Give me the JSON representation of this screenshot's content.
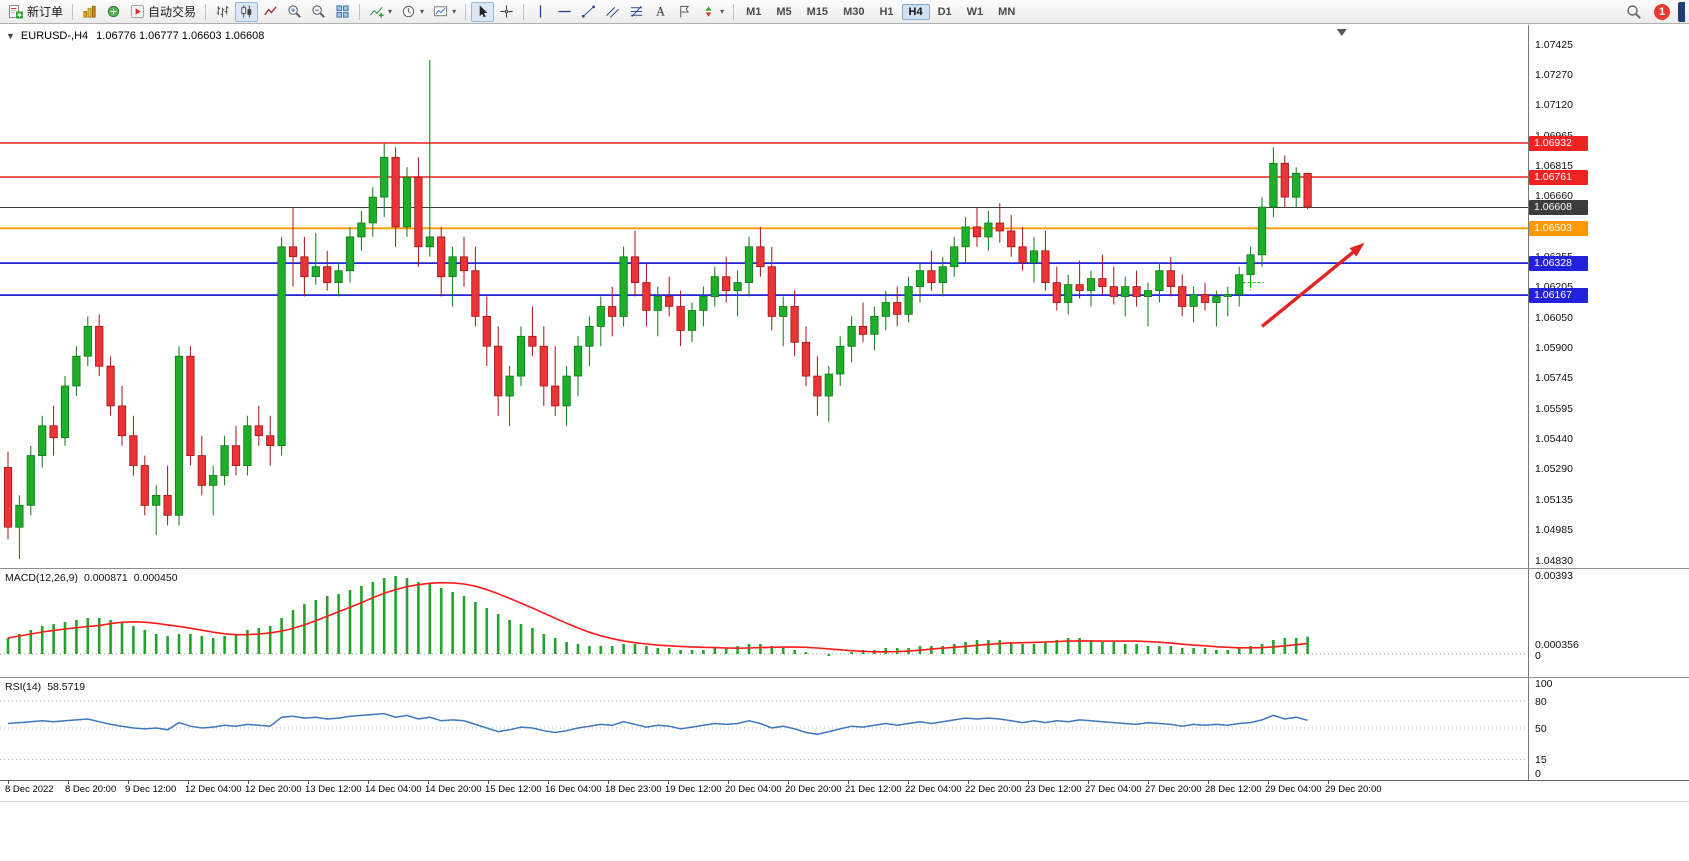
{
  "toolbar": {
    "new_order_label": "新订单",
    "auto_trading_label": "自动交易",
    "timeframes": [
      "M1",
      "M5",
      "M15",
      "M30",
      "H1",
      "H4",
      "D1",
      "W1",
      "MN"
    ],
    "active_timeframe": "H4",
    "notification_count": "1"
  },
  "chart_data": [
    {
      "type": "candlestick",
      "title_symbol": "EURUSD-,H4",
      "title_ohlc": "1.06776 1.06777 1.06603 1.06608",
      "open": 1.06776,
      "high": 1.06777,
      "low": 1.06603,
      "close": 1.06608,
      "y_max": 1.07425,
      "y_min": 1.0483,
      "y_ticks": [
        "1.07425",
        "1.07270",
        "1.07120",
        "1.06965",
        "1.06815",
        "1.06660",
        "1.06505",
        "1.06355",
        "1.06205",
        "1.06050",
        "1.05900",
        "1.05745",
        "1.05595",
        "1.05440",
        "1.05290",
        "1.05135",
        "1.04985",
        "1.04830"
      ],
      "x_labels": [
        "8 Dec 2022",
        "8 Dec 20:00",
        "9 Dec 12:00",
        "12 Dec 04:00",
        "12 Dec 20:00",
        "13 Dec 12:00",
        "14 Dec 04:00",
        "14 Dec 20:00",
        "15 Dec 12:00",
        "16 Dec 04:00",
        "18 Dec 23:00",
        "19 Dec 12:00",
        "20 Dec 04:00",
        "20 Dec 20:00",
        "21 Dec 12:00",
        "22 Dec 04:00",
        "22 Dec 20:00",
        "23 Dec 12:00",
        "27 Dec 04:00",
        "27 Dec 20:00",
        "28 Dec 12:00",
        "29 Dec 04:00",
        "29 Dec 20:00"
      ],
      "up_color": "#1fae2a",
      "up_stroke": "#0c7a12",
      "down_color": "#e93537",
      "down_stroke": "#a31313",
      "hlines": [
        {
          "price": 1.06932,
          "label": "1.06932",
          "color": "#f02222",
          "width": 1.6
        },
        {
          "price": 1.06761,
          "label": "1.06761",
          "color": "#f02222",
          "width": 1.6
        },
        {
          "price": 1.06608,
          "label": "1.06608",
          "color": "#3c3c3c",
          "width": 1.1,
          "role": "bid-price"
        },
        {
          "price": 1.06503,
          "label": "1.06503",
          "color": "#ff9800",
          "width": 1.8
        },
        {
          "price": 1.06328,
          "label": "1.06328",
          "color": "#2222dd",
          "width": 1.8
        },
        {
          "price": 1.06167,
          "label": "1.06167",
          "color": "#2222dd",
          "width": 1.8
        }
      ],
      "arrow": {
        "from_bar": 110,
        "from_price": 1.0601,
        "to_bar": 119,
        "to_price": 1.0643,
        "color": "#e02424"
      },
      "order_marker": {
        "bar": 109,
        "price": 1.0623,
        "color": "#00b300"
      },
      "shift_marker_bar": 117,
      "candles": [
        [
          1.053,
          1.0538,
          1.0494,
          1.05
        ],
        [
          1.05,
          1.0516,
          1.0484,
          1.0511
        ],
        [
          1.0511,
          1.0541,
          1.0506,
          1.0536
        ],
        [
          1.0536,
          1.0556,
          1.053,
          1.0551
        ],
        [
          1.0551,
          1.0561,
          1.0536,
          1.0545
        ],
        [
          1.0545,
          1.0576,
          1.0541,
          1.0571
        ],
        [
          1.0571,
          1.0591,
          1.0566,
          1.0586
        ],
        [
          1.0586,
          1.0606,
          1.0581,
          1.0601
        ],
        [
          1.0601,
          1.0607,
          1.0576,
          1.0581
        ],
        [
          1.0581,
          1.0586,
          1.0556,
          1.0561
        ],
        [
          1.0561,
          1.0571,
          1.0541,
          1.0546
        ],
        [
          1.0546,
          1.0556,
          1.0526,
          1.0531
        ],
        [
          1.0531,
          1.0536,
          1.0506,
          1.0511
        ],
        [
          1.0511,
          1.0521,
          1.0496,
          1.0516
        ],
        [
          1.0516,
          1.0531,
          1.0501,
          1.0506
        ],
        [
          1.0506,
          1.0591,
          1.0501,
          1.0586
        ],
        [
          1.0586,
          1.0591,
          1.0531,
          1.0536
        ],
        [
          1.0536,
          1.0546,
          1.0516,
          1.0521
        ],
        [
          1.0521,
          1.0531,
          1.0506,
          1.0526
        ],
        [
          1.0526,
          1.0546,
          1.0521,
          1.0541
        ],
        [
          1.0541,
          1.0551,
          1.0526,
          1.0531
        ],
        [
          1.0531,
          1.0556,
          1.0526,
          1.0551
        ],
        [
          1.0551,
          1.0561,
          1.0541,
          1.0546
        ],
        [
          1.0546,
          1.0556,
          1.0531,
          1.0541
        ],
        [
          1.0541,
          1.0646,
          1.0536,
          1.0641
        ],
        [
          1.0641,
          1.0661,
          1.0621,
          1.0636
        ],
        [
          1.0636,
          1.0646,
          1.0616,
          1.0626
        ],
        [
          1.0626,
          1.0648,
          1.0622,
          1.0631
        ],
        [
          1.0631,
          1.0639,
          1.0619,
          1.0623
        ],
        [
          1.0623,
          1.0633,
          1.0616,
          1.0629
        ],
        [
          1.0629,
          1.0651,
          1.0623,
          1.0646
        ],
        [
          1.0646,
          1.0659,
          1.0639,
          1.0653
        ],
        [
          1.0653,
          1.0671,
          1.0646,
          1.0666
        ],
        [
          1.0666,
          1.0693,
          1.0656,
          1.0686
        ],
        [
          1.0686,
          1.0691,
          1.0641,
          1.0651
        ],
        [
          1.0651,
          1.0681,
          1.0646,
          1.0676
        ],
        [
          1.0676,
          1.0686,
          1.0631,
          1.0641
        ],
        [
          1.0641,
          1.0735,
          1.0636,
          1.0646
        ],
        [
          1.0646,
          1.0651,
          1.0616,
          1.0626
        ],
        [
          1.0626,
          1.0641,
          1.0611,
          1.0636
        ],
        [
          1.0636,
          1.0646,
          1.0621,
          1.0629
        ],
        [
          1.0629,
          1.0641,
          1.0601,
          1.0606
        ],
        [
          1.0606,
          1.0616,
          1.0581,
          1.0591
        ],
        [
          1.0591,
          1.0601,
          1.0556,
          1.0566
        ],
        [
          1.0566,
          1.0581,
          1.0551,
          1.0576
        ],
        [
          1.0576,
          1.0601,
          1.0571,
          1.0596
        ],
        [
          1.0596,
          1.0611,
          1.0586,
          1.0591
        ],
        [
          1.0591,
          1.0601,
          1.0561,
          1.0571
        ],
        [
          1.0571,
          1.0591,
          1.0556,
          1.0561
        ],
        [
          1.0561,
          1.0581,
          1.0551,
          1.0576
        ],
        [
          1.0576,
          1.0596,
          1.0566,
          1.0591
        ],
        [
          1.0591,
          1.0606,
          1.0581,
          1.0601
        ],
        [
          1.0601,
          1.0616,
          1.0591,
          1.0611
        ],
        [
          1.0611,
          1.0621,
          1.0596,
          1.0606
        ],
        [
          1.0606,
          1.0641,
          1.0601,
          1.0636
        ],
        [
          1.0636,
          1.0649,
          1.0616,
          1.0623
        ],
        [
          1.0623,
          1.0633,
          1.0601,
          1.0609
        ],
        [
          1.0609,
          1.0621,
          1.0596,
          1.0616
        ],
        [
          1.0616,
          1.0626,
          1.0606,
          1.0611
        ],
        [
          1.0611,
          1.0619,
          1.0591,
          1.0599
        ],
        [
          1.0599,
          1.0613,
          1.0593,
          1.0609
        ],
        [
          1.0609,
          1.0621,
          1.0601,
          1.0616
        ],
        [
          1.0616,
          1.0631,
          1.0611,
          1.0626
        ],
        [
          1.0626,
          1.0636,
          1.0613,
          1.0619
        ],
        [
          1.0619,
          1.0629,
          1.0606,
          1.0623
        ],
        [
          1.0623,
          1.0646,
          1.0616,
          1.0641
        ],
        [
          1.0641,
          1.0651,
          1.0626,
          1.0631
        ],
        [
          1.0631,
          1.0641,
          1.0599,
          1.0606
        ],
        [
          1.0606,
          1.0616,
          1.0591,
          1.0611
        ],
        [
          1.0611,
          1.0619,
          1.0586,
          1.0593
        ],
        [
          1.0593,
          1.0601,
          1.0571,
          1.0576
        ],
        [
          1.0576,
          1.0586,
          1.0556,
          1.0566
        ],
        [
          1.0566,
          1.0581,
          1.0553,
          1.0577
        ],
        [
          1.0577,
          1.0596,
          1.0571,
          1.0591
        ],
        [
          1.0591,
          1.0606,
          1.0583,
          1.0601
        ],
        [
          1.0601,
          1.0613,
          1.0593,
          1.0597
        ],
        [
          1.0597,
          1.0611,
          1.0589,
          1.0606
        ],
        [
          1.0606,
          1.0619,
          1.0599,
          1.0613
        ],
        [
          1.0613,
          1.0621,
          1.0601,
          1.0607
        ],
        [
          1.0607,
          1.0626,
          1.0603,
          1.0621
        ],
        [
          1.0621,
          1.0633,
          1.0613,
          1.0629
        ],
        [
          1.0629,
          1.0639,
          1.0619,
          1.0623
        ],
        [
          1.0623,
          1.0636,
          1.0616,
          1.0631
        ],
        [
          1.0631,
          1.0646,
          1.0626,
          1.0641
        ],
        [
          1.0641,
          1.0656,
          1.0633,
          1.0651
        ],
        [
          1.0651,
          1.0661,
          1.0641,
          1.0646
        ],
        [
          1.0646,
          1.0659,
          1.0639,
          1.0653
        ],
        [
          1.0653,
          1.0663,
          1.0643,
          1.0649
        ],
        [
          1.0649,
          1.0657,
          1.0636,
          1.0641
        ],
        [
          1.0641,
          1.0651,
          1.0629,
          1.0633
        ],
        [
          1.0633,
          1.0646,
          1.0623,
          1.0639
        ],
        [
          1.0639,
          1.0649,
          1.0619,
          1.0623
        ],
        [
          1.0623,
          1.0631,
          1.0609,
          1.0613
        ],
        [
          1.0613,
          1.0627,
          1.0607,
          1.0622
        ],
        [
          1.0622,
          1.0634,
          1.0615,
          1.0619
        ],
        [
          1.0619,
          1.0629,
          1.0611,
          1.0625
        ],
        [
          1.0625,
          1.0637,
          1.0617,
          1.0621
        ],
        [
          1.0621,
          1.0631,
          1.0612,
          1.0616
        ],
        [
          1.0616,
          1.0626,
          1.0606,
          1.0621
        ],
        [
          1.0621,
          1.0629,
          1.0611,
          1.0616
        ],
        [
          1.0616,
          1.0623,
          1.0601,
          1.0619
        ],
        [
          1.0619,
          1.0633,
          1.0613,
          1.0629
        ],
        [
          1.0629,
          1.0636,
          1.0616,
          1.0621
        ],
        [
          1.0621,
          1.0627,
          1.0606,
          1.0611
        ],
        [
          1.0611,
          1.0621,
          1.0603,
          1.0617
        ],
        [
          1.0617,
          1.0623,
          1.0609,
          1.0613
        ],
        [
          1.0613,
          1.0619,
          1.0601,
          1.0616
        ],
        [
          1.0616,
          1.0621,
          1.0606,
          1.0617
        ],
        [
          1.0617,
          1.0631,
          1.0611,
          1.0627
        ],
        [
          1.0627,
          1.0641,
          1.0621,
          1.0637
        ],
        [
          1.0637,
          1.0666,
          1.0631,
          1.0661
        ],
        [
          1.0661,
          1.0691,
          1.0656,
          1.0683
        ],
        [
          1.0683,
          1.0687,
          1.0661,
          1.0666
        ],
        [
          1.0666,
          1.0681,
          1.0661,
          1.0678
        ],
        [
          1.0678,
          1.0678,
          1.066,
          1.0661
        ]
      ]
    },
    {
      "type": "bar",
      "name": "MACD",
      "label": "MACD(12,26,9)",
      "value_main": "0.000871",
      "value_signal": "0.000450",
      "signal_period": 9,
      "scale_labels": [
        "0.00393",
        "0.000356",
        "0"
      ],
      "bar_color": "#22a42a",
      "signal_color": "#ff1a1a",
      "y_max": 0.00393,
      "values": [
        0.0008,
        0.001,
        0.0012,
        0.0014,
        0.0015,
        0.0016,
        0.0017,
        0.0018,
        0.0018,
        0.0017,
        0.0016,
        0.0014,
        0.0012,
        0.001,
        0.0009,
        0.001,
        0.001,
        0.0009,
        0.0008,
        0.0009,
        0.001,
        0.0012,
        0.0013,
        0.0014,
        0.0018,
        0.0022,
        0.0025,
        0.0027,
        0.0029,
        0.003,
        0.0032,
        0.0034,
        0.0036,
        0.0038,
        0.0039,
        0.0038,
        0.0036,
        0.0035,
        0.0033,
        0.0031,
        0.0029,
        0.0026,
        0.0023,
        0.002,
        0.0017,
        0.0015,
        0.0013,
        0.001,
        0.0008,
        0.0006,
        0.0005,
        0.0004,
        0.0004,
        0.0004,
        0.0005,
        0.0005,
        0.0004,
        0.0003,
        0.0003,
        0.0002,
        0.0002,
        0.0002,
        0.0003,
        0.0003,
        0.0004,
        0.0005,
        0.0005,
        0.0004,
        0.0003,
        0.0002,
        0.0001,
        0.0,
        -0.0001,
        0.0,
        0.0001,
        0.0002,
        0.0002,
        0.0003,
        0.0003,
        0.0003,
        0.0004,
        0.0004,
        0.0004,
        0.0005,
        0.0006,
        0.0007,
        0.0007,
        0.0007,
        0.0006,
        0.0005,
        0.0005,
        0.0006,
        0.0007,
        0.0008,
        0.0008,
        0.0007,
        0.0006,
        0.0006,
        0.0005,
        0.0005,
        0.0004,
        0.0004,
        0.0004,
        0.0003,
        0.0003,
        0.0003,
        0.0002,
        0.0002,
        0.0003,
        0.0004,
        0.0005,
        0.0007,
        0.0008,
        0.0008,
        0.00087
      ]
    },
    {
      "type": "line",
      "name": "RSI",
      "label": "RSI(14)",
      "value": "58.5719",
      "line_color": "#3f77c0",
      "levels": [
        100,
        80,
        50,
        15,
        0
      ],
      "y_max": 100,
      "y_min": 0,
      "values": [
        55,
        56,
        57,
        58,
        57,
        58,
        59,
        60,
        57,
        54,
        52,
        50,
        49,
        50,
        48,
        56,
        52,
        50,
        51,
        53,
        52,
        54,
        53,
        52,
        62,
        63,
        61,
        62,
        60,
        61,
        63,
        64,
        65,
        66,
        62,
        64,
        60,
        62,
        58,
        59,
        58,
        54,
        50,
        46,
        48,
        51,
        50,
        47,
        45,
        47,
        50,
        52,
        54,
        53,
        57,
        54,
        51,
        53,
        52,
        49,
        51,
        53,
        55,
        54,
        55,
        58,
        55,
        50,
        52,
        49,
        45,
        43,
        46,
        49,
        52,
        51,
        53,
        55,
        53,
        55,
        57,
        55,
        57,
        59,
        61,
        60,
        61,
        60,
        58,
        56,
        58,
        56,
        58,
        57,
        59,
        58,
        57,
        56,
        55,
        54,
        56,
        55,
        54,
        52,
        54,
        53,
        54,
        53,
        55,
        56,
        59,
        64,
        60,
        62,
        58.57
      ]
    }
  ]
}
